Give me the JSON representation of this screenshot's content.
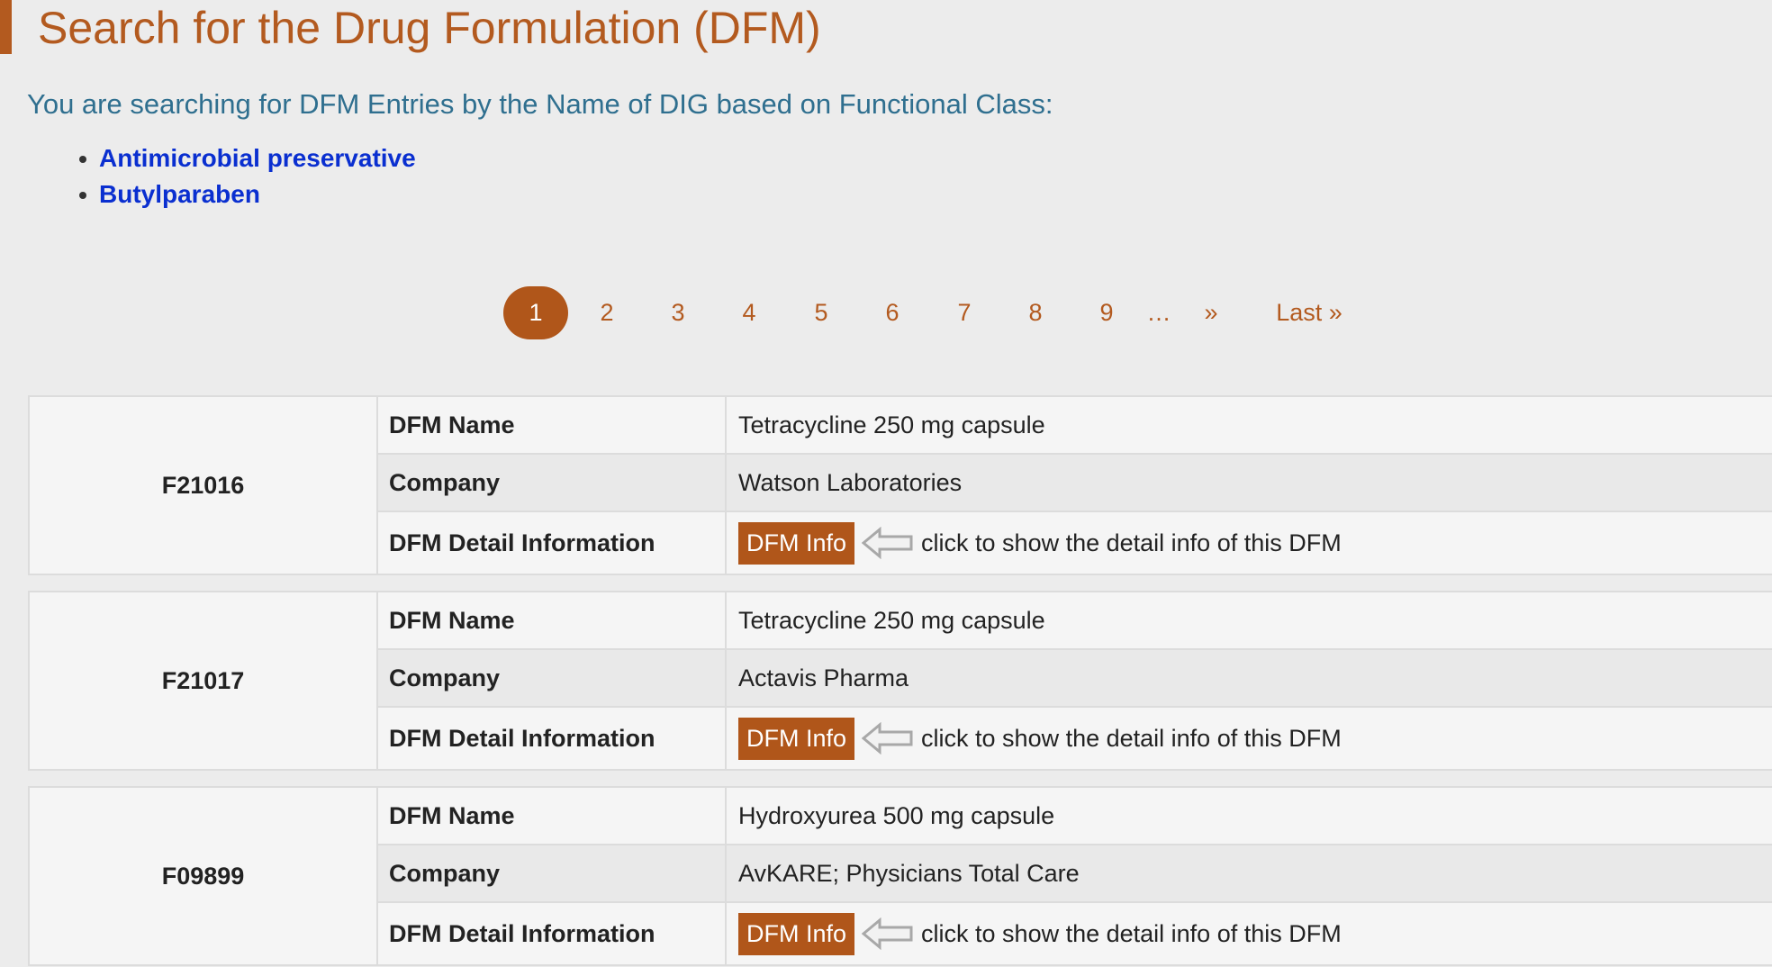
{
  "header": {
    "title": "Search for the Drug Formulation (DFM)",
    "subtitle": "You are searching for DFM Entries by the Name of DIG based on Functional Class:",
    "filters": [
      "Antimicrobial preservative",
      "Butylparaben"
    ]
  },
  "pagination": {
    "current": "1",
    "pages": [
      "1",
      "2",
      "3",
      "4",
      "5",
      "6",
      "7",
      "8",
      "9"
    ],
    "ellipsis": "…",
    "next": "»",
    "last": "Last »"
  },
  "labels": {
    "name": "DFM Name",
    "company": "Company",
    "detail": "DFM Detail Information",
    "button": "DFM Info",
    "hint": "click to show the detail info of this DFM"
  },
  "entries": [
    {
      "id": "F21016",
      "name": "Tetracycline 250 mg capsule",
      "company": "Watson Laboratories"
    },
    {
      "id": "F21017",
      "name": "Tetracycline 250 mg capsule",
      "company": "Actavis Pharma"
    },
    {
      "id": "F09899",
      "name": "Hydroxyurea 500 mg capsule",
      "company": "AvKARE; Physicians Total Care"
    }
  ],
  "colors": {
    "accent": "#b35a1f",
    "button": "#b0561a",
    "link": "#0a2fd0",
    "subtitle": "#2f6f8f"
  }
}
